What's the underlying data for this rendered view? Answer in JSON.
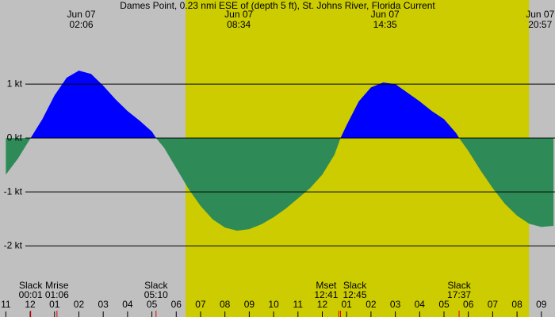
{
  "chart_data": {
    "type": "area",
    "title": "Dames Point, 0.23 nmi ESE of (depth 5 ft), St. Johns River, Florida Current",
    "x": [
      -1,
      -0.5,
      0.02,
      0.5,
      1,
      1.5,
      2,
      2.5,
      3,
      3.5,
      4,
      4.5,
      5,
      5.17,
      5.5,
      6,
      6.5,
      7,
      7.5,
      8,
      8.5,
      9,
      9.5,
      10,
      10.5,
      11,
      11.5,
      12,
      12.5,
      12.75,
      13,
      13.5,
      14,
      14.5,
      15,
      15.5,
      16,
      16.5,
      17,
      17.5,
      17.62,
      18,
      18.5,
      19,
      19.5,
      20,
      20.5,
      21,
      21.5
    ],
    "values": [
      -0.68,
      -0.38,
      0,
      0.35,
      0.79,
      1.12,
      1.25,
      1.19,
      0.97,
      0.72,
      0.5,
      0.32,
      0.12,
      0,
      -0.18,
      -0.56,
      -0.94,
      -1.26,
      -1.51,
      -1.66,
      -1.72,
      -1.69,
      -1.6,
      -1.47,
      -1.31,
      -1.12,
      -0.93,
      -0.68,
      -0.31,
      0,
      0.24,
      0.68,
      0.94,
      1.03,
      1.0,
      0.84,
      0.68,
      0.5,
      0.35,
      0.09,
      0,
      -0.24,
      -0.6,
      -0.93,
      -1.22,
      -1.44,
      -1.59,
      -1.65,
      -1.63
    ],
    "flood_color": "#0000ff",
    "ebb_color": "#2e8b57",
    "night_color": "#c0c0c0",
    "day_color": "#cccc00",
    "daylight": [
      6.38,
      20.49
    ],
    "xlim": [
      -1.24,
      21.56
    ],
    "ylim": [
      -3.32,
      2.56
    ],
    "yticks": [
      {
        "value": 1,
        "label": "1 kt"
      },
      {
        "value": 0,
        "label": "0 kt"
      },
      {
        "value": -1,
        "label": "-1 kt"
      },
      {
        "value": -2,
        "label": "-2 kt"
      }
    ],
    "xticks": [
      {
        "value": -1,
        "label": "11"
      },
      {
        "value": 0,
        "label": "12"
      },
      {
        "value": 1,
        "label": "01"
      },
      {
        "value": 2,
        "label": "02"
      },
      {
        "value": 3,
        "label": "03"
      },
      {
        "value": 4,
        "label": "04"
      },
      {
        "value": 5,
        "label": "05"
      },
      {
        "value": 6,
        "label": "06"
      },
      {
        "value": 7,
        "label": "07"
      },
      {
        "value": 8,
        "label": "08"
      },
      {
        "value": 9,
        "label": "09"
      },
      {
        "value": 10,
        "label": "10"
      },
      {
        "value": 11,
        "label": "11"
      },
      {
        "value": 12,
        "label": "12"
      },
      {
        "value": 13,
        "label": "01"
      },
      {
        "value": 14,
        "label": "02"
      },
      {
        "value": 15,
        "label": "03"
      },
      {
        "value": 16,
        "label": "04"
      },
      {
        "value": 17,
        "label": "05"
      },
      {
        "value": 18,
        "label": "06"
      },
      {
        "value": 19,
        "label": "07"
      },
      {
        "value": 20,
        "label": "08"
      },
      {
        "value": 21,
        "label": "09"
      }
    ],
    "peaks": [
      {
        "x": 2.1,
        "date": "Jun 07",
        "time": "02:06"
      },
      {
        "x": 8.57,
        "date": "Jun 07",
        "time": "08:34"
      },
      {
        "x": 14.58,
        "date": "Jun 07",
        "time": "14:35"
      },
      {
        "x": 20.95,
        "date": "Jun 07",
        "time": "20:57"
      }
    ],
    "events": [
      {
        "x": 0.02,
        "name": "Slack",
        "time": "00:01"
      },
      {
        "x": 1.1,
        "name": "Mrise",
        "time": "01:06"
      },
      {
        "x": 5.17,
        "name": "Slack",
        "time": "05:10"
      },
      {
        "x": 12.68,
        "name": "Mset",
        "time": "12:41"
      },
      {
        "x": 12.75,
        "name": "Slack",
        "time": "12:45"
      },
      {
        "x": 17.62,
        "name": "Slack",
        "time": "17:37"
      }
    ]
  }
}
